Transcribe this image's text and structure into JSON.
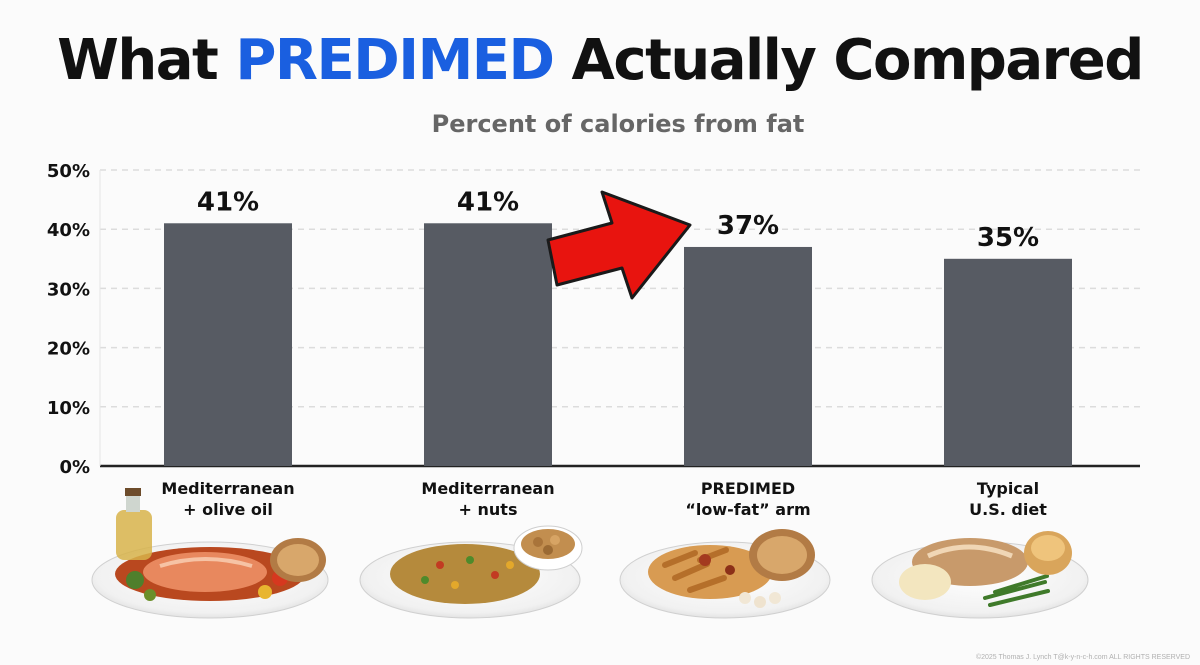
{
  "header": {
    "title_before": "What ",
    "title_highlight": "PREDIMED",
    "title_after": " Actually Compared",
    "highlight_color": "#1a5fe0"
  },
  "chart_data": {
    "type": "bar",
    "title": "What PREDIMED Actually Compared",
    "subtitle": "Percent of calories from fat",
    "categories": [
      {
        "line1": "Mediterranean",
        "line2": "+ olive oil"
      },
      {
        "line1": "Mediterranean",
        "line2": "+ nuts"
      },
      {
        "line1": "PREDIMED",
        "line2": "“low-fat” arm"
      },
      {
        "line1": "Typical",
        "line2": "U.S. diet"
      }
    ],
    "values": [
      41,
      41,
      37,
      35
    ],
    "value_labels": [
      "41%",
      "41%",
      "37%",
      "35%"
    ],
    "ylim": [
      0,
      50
    ],
    "y_ticks": [
      "0%",
      "10%",
      "20%",
      "30%",
      "40%",
      "50%"
    ],
    "grid": true,
    "bar_color": "#575b63",
    "annotation": {
      "type": "red-arrow",
      "points_to": "PREDIMED “low-fat” arm",
      "color": "#e8140f"
    }
  },
  "footer": {
    "copyright": "©2025 Thomas J. Lynch T@k-y-n-c-h.com ALL RIGHTS RESERVED"
  }
}
